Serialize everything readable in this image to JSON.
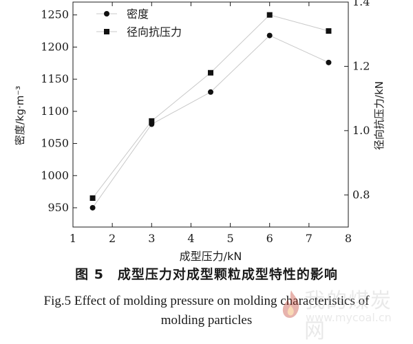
{
  "chart_data": {
    "type": "line",
    "x": [
      1.5,
      3,
      4.5,
      6,
      7.5
    ],
    "series": [
      {
        "name": "密度",
        "axis": "left",
        "marker": "circle",
        "values": [
          950,
          1080,
          1130,
          1218,
          1176
        ]
      },
      {
        "name": "径向抗压力",
        "axis": "right",
        "marker": "square",
        "values": [
          0.79,
          1.03,
          1.18,
          1.36,
          1.31
        ]
      }
    ],
    "xlabel": "成型压力/kN",
    "ylabel_left": "密度/kg·m⁻³",
    "ylabel_right": "径向抗压力/kN",
    "xlim": [
      1,
      8
    ],
    "ylim_left": [
      920,
      1270
    ],
    "ylim_right": [
      0.7,
      1.4
    ],
    "xticks": [
      1,
      2,
      3,
      4,
      5,
      6,
      7,
      8
    ],
    "yticks_left": [
      950,
      1000,
      1050,
      1100,
      1150,
      1200,
      1250
    ],
    "yticks_right": [
      0.8,
      1.0,
      1.2,
      1.4
    ],
    "ytick_labels_right": [
      "0.8",
      "1.0",
      "1.2",
      "1.4"
    ],
    "grid": false,
    "legend_position": "top-left",
    "line_color": "#c8c8c8",
    "marker_color": "#111111"
  },
  "caption": {
    "zh": "图 5　成型压力对成型颗粒成型特性的影响",
    "en_line1": "Fig.5 Effect of molding pressure on molding characteristics of",
    "en_line2": "molding particles"
  },
  "watermark": {
    "name": "我的煤炭网",
    "url": "www.mycoal.cn",
    "icon": "flame-logo-icon"
  }
}
